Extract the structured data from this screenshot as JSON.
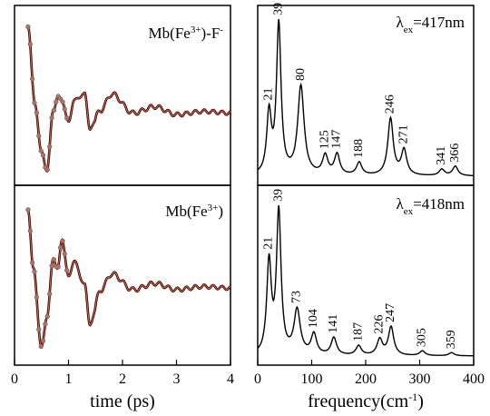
{
  "chart_data": [
    {
      "type": "line",
      "panel": "top-left",
      "label": "Mb(Fe3+)-F-",
      "label_base": "Mb(Fe",
      "label_sup": "3+",
      "label_mid": ")-F",
      "label_sup2": "-",
      "xlim": [
        0,
        4
      ],
      "series": [
        {
          "role": "data",
          "color": "#000000",
          "marker_color": "#8a8a8a"
        },
        {
          "role": "fit",
          "color": "#e8553a"
        }
      ],
      "key_points": [
        [
          0.25,
          0.95
        ],
        [
          0.38,
          0.45
        ],
        [
          0.5,
          0.15
        ],
        [
          0.6,
          0.04
        ],
        [
          0.72,
          0.42
        ],
        [
          0.8,
          0.5
        ],
        [
          0.88,
          0.48
        ],
        [
          1.0,
          0.34
        ],
        [
          1.1,
          0.48
        ],
        [
          1.3,
          0.52
        ],
        [
          1.4,
          0.3
        ],
        [
          1.6,
          0.42
        ],
        [
          1.8,
          0.52
        ],
        [
          2.2,
          0.4
        ],
        [
          2.6,
          0.44
        ],
        [
          3.0,
          0.39
        ],
        [
          3.5,
          0.41
        ],
        [
          4.0,
          0.4
        ]
      ]
    },
    {
      "type": "line",
      "panel": "top-right",
      "label": "λex=417nm",
      "lambda_symbol": "λ",
      "lambda_sub": "ex",
      "lambda_value": "=417nm",
      "xlim": [
        0,
        400
      ],
      "peaks": [
        {
          "freq": 21,
          "label": "21",
          "height": 0.38
        },
        {
          "freq": 39,
          "label": "39",
          "height": 0.95
        },
        {
          "freq": 80,
          "label": "80",
          "height": 0.56
        },
        {
          "freq": 125,
          "label": "125",
          "height": 0.12
        },
        {
          "freq": 147,
          "label": "147",
          "height": 0.13
        },
        {
          "freq": 188,
          "label": "188",
          "height": 0.08
        },
        {
          "freq": 246,
          "label": "246",
          "height": 0.36
        },
        {
          "freq": 271,
          "label": "271",
          "height": 0.16
        },
        {
          "freq": 341,
          "label": "341",
          "height": 0.04
        },
        {
          "freq": 366,
          "label": "366",
          "height": 0.06
        }
      ]
    },
    {
      "type": "line",
      "panel": "bottom-left",
      "label": "Mb(Fe3+)",
      "label_base": "Mb(Fe",
      "label_sup": "3+",
      "label_mid": ")",
      "xlabel": "time (ps)",
      "xlim": [
        0,
        4
      ],
      "xticks": [
        "0",
        "1",
        "2",
        "3",
        "4"
      ],
      "series": [
        {
          "role": "data",
          "color": "#000000",
          "marker_color": "#8a8a8a"
        },
        {
          "role": "fit",
          "color": "#e8553a"
        }
      ],
      "key_points": [
        [
          0.25,
          0.93
        ],
        [
          0.35,
          0.55
        ],
        [
          0.5,
          0.05
        ],
        [
          0.6,
          0.25
        ],
        [
          0.72,
          0.62
        ],
        [
          0.8,
          0.55
        ],
        [
          0.88,
          0.74
        ],
        [
          1.0,
          0.5
        ],
        [
          1.1,
          0.6
        ],
        [
          1.3,
          0.45
        ],
        [
          1.4,
          0.2
        ],
        [
          1.6,
          0.42
        ],
        [
          1.8,
          0.52
        ],
        [
          2.2,
          0.42
        ],
        [
          2.6,
          0.46
        ],
        [
          3.0,
          0.42
        ],
        [
          3.5,
          0.44
        ],
        [
          4.0,
          0.43
        ]
      ]
    },
    {
      "type": "line",
      "panel": "bottom-right",
      "label": "λex=418nm",
      "lambda_symbol": "λ",
      "lambda_sub": "ex",
      "lambda_value": "=418nm",
      "xlabel": "frequency(cm-1)",
      "xlabel_base": "frequency(cm",
      "xlabel_sup": "-1",
      "xlabel_end": ")",
      "xlim": [
        0,
        400
      ],
      "xticks": [
        "0",
        "100",
        "200",
        "300",
        "400"
      ],
      "peaks": [
        {
          "freq": 21,
          "label": "21",
          "height": 0.58
        },
        {
          "freq": 39,
          "label": "39",
          "height": 0.9
        },
        {
          "freq": 73,
          "label": "73",
          "height": 0.28
        },
        {
          "freq": 104,
          "label": "104",
          "height": 0.13
        },
        {
          "freq": 141,
          "label": "141",
          "height": 0.11
        },
        {
          "freq": 187,
          "label": "187",
          "height": 0.06
        },
        {
          "freq": 226,
          "label": "226",
          "height": 0.1
        },
        {
          "freq": 247,
          "label": "247",
          "height": 0.18
        },
        {
          "freq": 305,
          "label": "305",
          "height": 0.03
        },
        {
          "freq": 359,
          "label": "359",
          "height": 0.02
        }
      ]
    }
  ]
}
